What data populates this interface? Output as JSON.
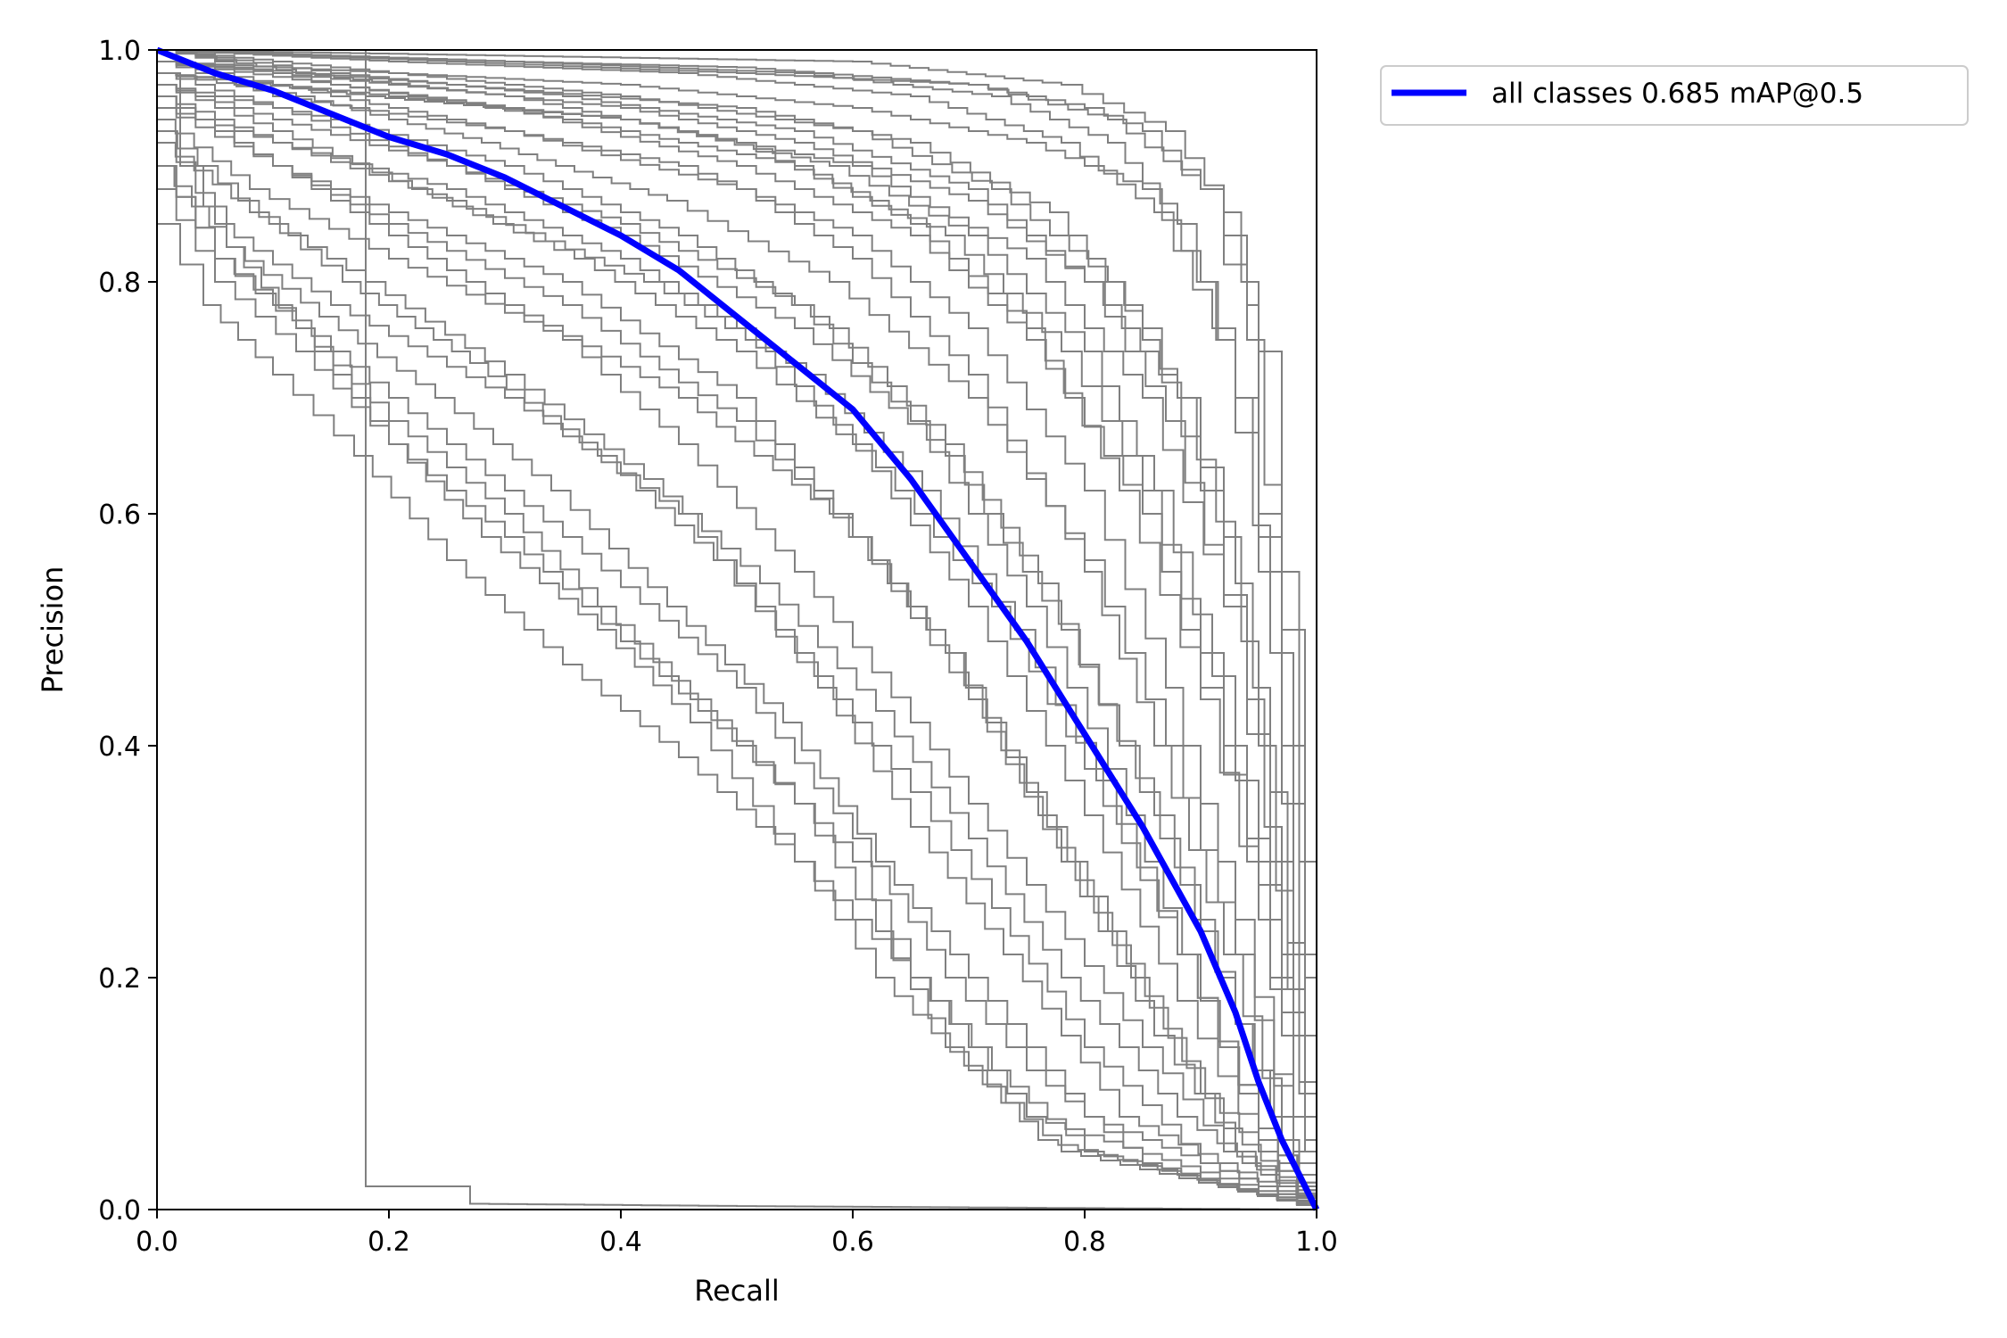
{
  "chart_data": {
    "type": "line",
    "title": "",
    "xlabel": "Recall",
    "ylabel": "Precision",
    "xlim": [
      0.0,
      1.0
    ],
    "ylim": [
      0.0,
      1.0
    ],
    "grid": false,
    "legend_position": "outside-top-right",
    "xticks": [
      "0.0",
      "0.2",
      "0.4",
      "0.6",
      "0.8",
      "1.0"
    ],
    "yticks": [
      "0.0",
      "0.2",
      "0.4",
      "0.6",
      "0.8",
      "1.0"
    ],
    "colors": {
      "all_classes": "#0000ff",
      "per_class": "#808080"
    },
    "all_classes": {
      "name": "all classes 0.685 mAP@0.5",
      "x": [
        0.0,
        0.05,
        0.1,
        0.15,
        0.2,
        0.25,
        0.3,
        0.35,
        0.4,
        0.45,
        0.5,
        0.55,
        0.6,
        0.65,
        0.7,
        0.75,
        0.8,
        0.85,
        0.9,
        0.93,
        0.95,
        0.97,
        1.0
      ],
      "y": [
        1.0,
        0.98,
        0.965,
        0.945,
        0.925,
        0.91,
        0.89,
        0.865,
        0.84,
        0.81,
        0.77,
        0.73,
        0.69,
        0.63,
        0.56,
        0.49,
        0.41,
        0.33,
        0.24,
        0.17,
        0.11,
        0.06,
        0.0
      ]
    },
    "per_class_curves": [
      {
        "x": [
          0,
          0.3,
          0.5,
          0.7,
          0.8,
          0.85,
          0.9,
          0.92,
          0.94,
          0.95,
          0.97,
          0.985,
          1.0
        ],
        "y": [
          1.0,
          0.99,
          0.985,
          0.97,
          0.95,
          0.93,
          0.88,
          0.84,
          0.78,
          0.6,
          0.35,
          0.1,
          0.0
        ]
      },
      {
        "x": [
          0,
          0.2,
          0.4,
          0.6,
          0.75,
          0.85,
          0.9,
          0.93,
          0.95,
          0.97,
          0.99,
          1.0
        ],
        "y": [
          1.0,
          0.98,
          0.97,
          0.95,
          0.92,
          0.88,
          0.8,
          0.7,
          0.55,
          0.35,
          0.1,
          0.0
        ]
      },
      {
        "x": [
          0,
          0.2,
          0.4,
          0.55,
          0.7,
          0.8,
          0.88,
          0.92,
          0.95,
          0.98,
          1.0
        ],
        "y": [
          0.99,
          0.97,
          0.95,
          0.92,
          0.87,
          0.8,
          0.7,
          0.58,
          0.4,
          0.15,
          0.0
        ]
      },
      {
        "x": [
          0,
          0.2,
          0.4,
          0.6,
          0.75,
          0.85,
          0.92,
          0.96,
          0.99,
          1.0
        ],
        "y": [
          0.98,
          0.96,
          0.94,
          0.9,
          0.82,
          0.7,
          0.52,
          0.3,
          0.08,
          0.0
        ]
      },
      {
        "x": [
          0,
          0.15,
          0.3,
          0.5,
          0.65,
          0.75,
          0.85,
          0.9,
          0.94,
          0.98,
          1.0
        ],
        "y": [
          1.0,
          0.97,
          0.95,
          0.9,
          0.84,
          0.75,
          0.6,
          0.45,
          0.3,
          0.08,
          0.0
        ]
      },
      {
        "x": [
          0,
          0.1,
          0.3,
          0.5,
          0.6,
          0.7,
          0.8,
          0.86,
          0.92,
          0.97,
          1.0
        ],
        "y": [
          0.99,
          0.96,
          0.93,
          0.88,
          0.82,
          0.72,
          0.55,
          0.4,
          0.22,
          0.06,
          0.0
        ]
      },
      {
        "x": [
          0,
          0.1,
          0.25,
          0.4,
          0.55,
          0.65,
          0.75,
          0.82,
          0.9,
          0.95,
          1.0
        ],
        "y": [
          0.97,
          0.94,
          0.9,
          0.85,
          0.78,
          0.68,
          0.52,
          0.38,
          0.18,
          0.06,
          0.0
        ]
      },
      {
        "x": [
          0,
          0.1,
          0.25,
          0.4,
          0.5,
          0.6,
          0.7,
          0.8,
          0.88,
          0.95,
          1.0
        ],
        "y": [
          0.95,
          0.92,
          0.88,
          0.82,
          0.76,
          0.66,
          0.52,
          0.34,
          0.18,
          0.05,
          0.0
        ]
      },
      {
        "x": [
          0,
          0.1,
          0.2,
          0.35,
          0.5,
          0.6,
          0.7,
          0.78,
          0.86,
          0.93,
          1.0
        ],
        "y": [
          0.96,
          0.9,
          0.86,
          0.8,
          0.7,
          0.58,
          0.44,
          0.3,
          0.15,
          0.05,
          0.0
        ]
      },
      {
        "x": [
          0,
          0.08,
          0.2,
          0.35,
          0.45,
          0.55,
          0.65,
          0.75,
          0.85,
          0.92,
          1.0
        ],
        "y": [
          0.94,
          0.88,
          0.82,
          0.75,
          0.66,
          0.55,
          0.42,
          0.28,
          0.14,
          0.05,
          0.0
        ]
      },
      {
        "x": [
          0,
          0.05,
          0.15,
          0.3,
          0.45,
          0.55,
          0.65,
          0.72,
          0.8,
          0.9,
          1.0
        ],
        "y": [
          0.93,
          0.85,
          0.78,
          0.7,
          0.6,
          0.48,
          0.36,
          0.26,
          0.14,
          0.04,
          0.0
        ]
      },
      {
        "x": [
          0,
          0.05,
          0.15,
          0.25,
          0.35,
          0.5,
          0.6,
          0.68,
          0.75,
          0.85,
          1.0
        ],
        "y": [
          0.9,
          0.82,
          0.74,
          0.66,
          0.58,
          0.45,
          0.32,
          0.2,
          0.12,
          0.04,
          0.0
        ]
      },
      {
        "x": [
          0,
          0.05,
          0.12,
          0.2,
          0.3,
          0.4,
          0.5,
          0.6,
          0.65,
          0.72,
          0.8,
          1.0
        ],
        "y": [
          0.88,
          0.8,
          0.74,
          0.66,
          0.58,
          0.49,
          0.4,
          0.3,
          0.2,
          0.12,
          0.05,
          0.0
        ]
      },
      {
        "x": [
          0,
          0.04,
          0.1,
          0.17,
          0.25,
          0.35,
          0.45,
          0.55,
          0.62,
          0.7,
          0.78,
          1.0
        ],
        "y": [
          0.85,
          0.78,
          0.72,
          0.65,
          0.56,
          0.47,
          0.39,
          0.3,
          0.2,
          0.12,
          0.05,
          0.0
        ]
      },
      {
        "x": [
          0,
          0.05,
          0.12,
          0.2,
          0.3,
          0.38,
          0.46,
          0.55,
          0.62,
          0.68,
          0.76,
          1.0
        ],
        "y": [
          0.9,
          0.82,
          0.76,
          0.68,
          0.6,
          0.52,
          0.44,
          0.35,
          0.24,
          0.14,
          0.06,
          0.0
        ]
      },
      {
        "x": [
          0,
          0.02,
          0.06,
          0.12,
          0.2,
          0.28,
          0.38,
          0.46,
          0.55,
          0.65,
          0.75,
          1.0
        ],
        "y": [
          0.98,
          0.9,
          0.83,
          0.76,
          0.66,
          0.58,
          0.5,
          0.42,
          0.3,
          0.2,
          0.08,
          0.0
        ]
      },
      {
        "x": [
          0,
          0.1,
          0.25,
          0.45,
          0.6,
          0.7,
          0.8,
          0.87,
          0.93,
          0.98,
          1.0
        ],
        "y": [
          0.99,
          0.97,
          0.94,
          0.9,
          0.84,
          0.76,
          0.62,
          0.45,
          0.25,
          0.05,
          0.0
        ]
      },
      {
        "x": [
          0,
          0.15,
          0.35,
          0.55,
          0.7,
          0.8,
          0.87,
          0.92,
          0.96,
          1.0
        ],
        "y": [
          1.0,
          0.98,
          0.96,
          0.93,
          0.88,
          0.8,
          0.68,
          0.52,
          0.3,
          0.0
        ]
      },
      {
        "x": [
          0,
          0.1,
          0.25,
          0.4,
          0.55,
          0.68,
          0.78,
          0.86,
          0.93,
          0.98,
          1.0
        ],
        "y": [
          0.98,
          0.95,
          0.9,
          0.84,
          0.76,
          0.65,
          0.5,
          0.34,
          0.16,
          0.04,
          0.0
        ]
      },
      {
        "x": [
          0,
          0.1,
          0.2,
          0.3,
          0.45,
          0.58,
          0.68,
          0.76,
          0.84,
          0.92,
          1.0
        ],
        "y": [
          0.96,
          0.9,
          0.84,
          0.78,
          0.7,
          0.6,
          0.48,
          0.34,
          0.2,
          0.07,
          0.0
        ]
      },
      {
        "x": [
          0,
          0.12,
          0.3,
          0.5,
          0.65,
          0.75,
          0.83,
          0.9,
          0.95,
          0.99,
          1.0
        ],
        "y": [
          1.0,
          0.98,
          0.96,
          0.92,
          0.85,
          0.76,
          0.62,
          0.44,
          0.25,
          0.05,
          0.0
        ]
      },
      {
        "x": [
          0,
          0.2,
          0.45,
          0.65,
          0.78,
          0.86,
          0.91,
          0.95,
          0.97,
          0.99,
          1.0
        ],
        "y": [
          1.0,
          0.99,
          0.98,
          0.96,
          0.92,
          0.86,
          0.76,
          0.58,
          0.4,
          0.15,
          0.0
        ]
      },
      {
        "x": [
          0,
          0.3,
          0.55,
          0.72,
          0.82,
          0.88,
          0.93,
          0.96,
          0.98,
          1.0
        ],
        "y": [
          1.0,
          0.99,
          0.98,
          0.96,
          0.92,
          0.85,
          0.7,
          0.48,
          0.22,
          0.0
        ]
      },
      {
        "x": [
          0,
          0.25,
          0.5,
          0.65,
          0.77,
          0.85,
          0.9,
          0.94,
          0.97,
          1.0
        ],
        "y": [
          0.99,
          0.97,
          0.95,
          0.92,
          0.86,
          0.76,
          0.62,
          0.44,
          0.22,
          0.0
        ]
      },
      {
        "x": [
          0,
          0.18,
          0.4,
          0.58,
          0.7,
          0.8,
          0.86,
          0.91,
          0.95,
          0.99,
          1.0
        ],
        "y": [
          0.98,
          0.96,
          0.94,
          0.9,
          0.84,
          0.74,
          0.62,
          0.46,
          0.28,
          0.06,
          0.0
        ]
      },
      {
        "x": [
          0,
          0.15,
          0.3,
          0.45,
          0.58,
          0.68,
          0.76,
          0.83,
          0.9,
          0.96,
          1.0
        ],
        "y": [
          0.97,
          0.94,
          0.9,
          0.84,
          0.76,
          0.66,
          0.54,
          0.4,
          0.24,
          0.08,
          0.0
        ]
      },
      {
        "x": [
          0,
          0.08,
          0.18,
          0.3,
          0.42,
          0.52,
          0.62,
          0.7,
          0.78,
          0.88,
          1.0
        ],
        "y": [
          0.92,
          0.86,
          0.8,
          0.72,
          0.63,
          0.54,
          0.43,
          0.32,
          0.2,
          0.08,
          0.0
        ]
      },
      {
        "x": [
          0,
          0.06,
          0.14,
          0.24,
          0.34,
          0.44,
          0.54,
          0.62,
          0.7,
          0.8,
          1.0
        ],
        "y": [
          0.9,
          0.83,
          0.77,
          0.7,
          0.62,
          0.52,
          0.42,
          0.3,
          0.2,
          0.08,
          0.0
        ]
      },
      {
        "x": [
          0,
          0.2,
          0.4,
          0.6,
          0.72,
          0.82,
          0.88,
          0.93,
          0.96,
          0.99,
          1.0
        ],
        "y": [
          0.99,
          0.98,
          0.96,
          0.93,
          0.88,
          0.8,
          0.7,
          0.54,
          0.36,
          0.1,
          0.0
        ]
      },
      {
        "x": [
          0,
          0.12,
          0.28,
          0.44,
          0.58,
          0.7,
          0.8,
          0.87,
          0.93,
          0.98,
          1.0
        ],
        "y": [
          0.98,
          0.96,
          0.92,
          0.87,
          0.8,
          0.7,
          0.56,
          0.4,
          0.22,
          0.05,
          0.0
        ]
      },
      {
        "x": [
          0,
          0.1,
          0.22,
          0.36,
          0.5,
          0.62,
          0.72,
          0.8,
          0.88,
          0.95,
          1.0
        ],
        "y": [
          0.97,
          0.93,
          0.88,
          0.82,
          0.74,
          0.64,
          0.52,
          0.38,
          0.22,
          0.07,
          0.0
        ]
      },
      {
        "x": [
          0,
          0.15,
          0.35,
          0.55,
          0.68,
          0.78,
          0.85,
          0.9,
          0.94,
          0.98,
          1.0
        ],
        "y": [
          0.99,
          0.97,
          0.94,
          0.9,
          0.84,
          0.74,
          0.62,
          0.48,
          0.32,
          0.08,
          0.0
        ]
      },
      {
        "x": [
          0,
          0.1,
          0.2,
          0.35,
          0.5,
          0.6,
          0.68,
          0.75,
          0.82,
          0.9,
          1.0
        ],
        "y": [
          0.95,
          0.9,
          0.85,
          0.78,
          0.68,
          0.58,
          0.48,
          0.36,
          0.24,
          0.1,
          0.0
        ]
      },
      {
        "x": [
          0,
          0.25,
          0.5,
          0.7,
          0.82,
          0.9,
          0.94,
          0.97,
          0.99,
          1.0
        ],
        "y": [
          1.0,
          0.99,
          0.98,
          0.97,
          0.94,
          0.88,
          0.75,
          0.5,
          0.2,
          0.0
        ]
      },
      {
        "x": [
          0,
          0.3,
          0.6,
          0.78,
          0.87,
          0.92,
          0.95,
          0.97,
          0.985,
          1.0
        ],
        "y": [
          1.0,
          0.995,
          0.99,
          0.97,
          0.93,
          0.86,
          0.74,
          0.55,
          0.3,
          0.0
        ]
      },
      {
        "x": [
          0,
          0.1,
          0.25,
          0.42,
          0.56,
          0.66,
          0.74,
          0.81,
          0.88,
          0.95,
          1.0
        ],
        "y": [
          0.96,
          0.92,
          0.87,
          0.8,
          0.72,
          0.62,
          0.5,
          0.37,
          0.22,
          0.07,
          0.0
        ]
      },
      {
        "x": [
          0,
          0.07,
          0.16,
          0.27,
          0.38,
          0.48,
          0.57,
          0.65,
          0.73,
          0.83,
          1.0
        ],
        "y": [
          0.93,
          0.87,
          0.8,
          0.73,
          0.65,
          0.56,
          0.45,
          0.33,
          0.22,
          0.08,
          0.0
        ]
      },
      {
        "x": [
          0,
          0.18,
          0.18,
          0.27,
          0.27,
          0.5,
          1.0
        ],
        "y": [
          1.0,
          1.0,
          0.02,
          0.02,
          0.005,
          0.003,
          0.0
        ]
      }
    ]
  }
}
